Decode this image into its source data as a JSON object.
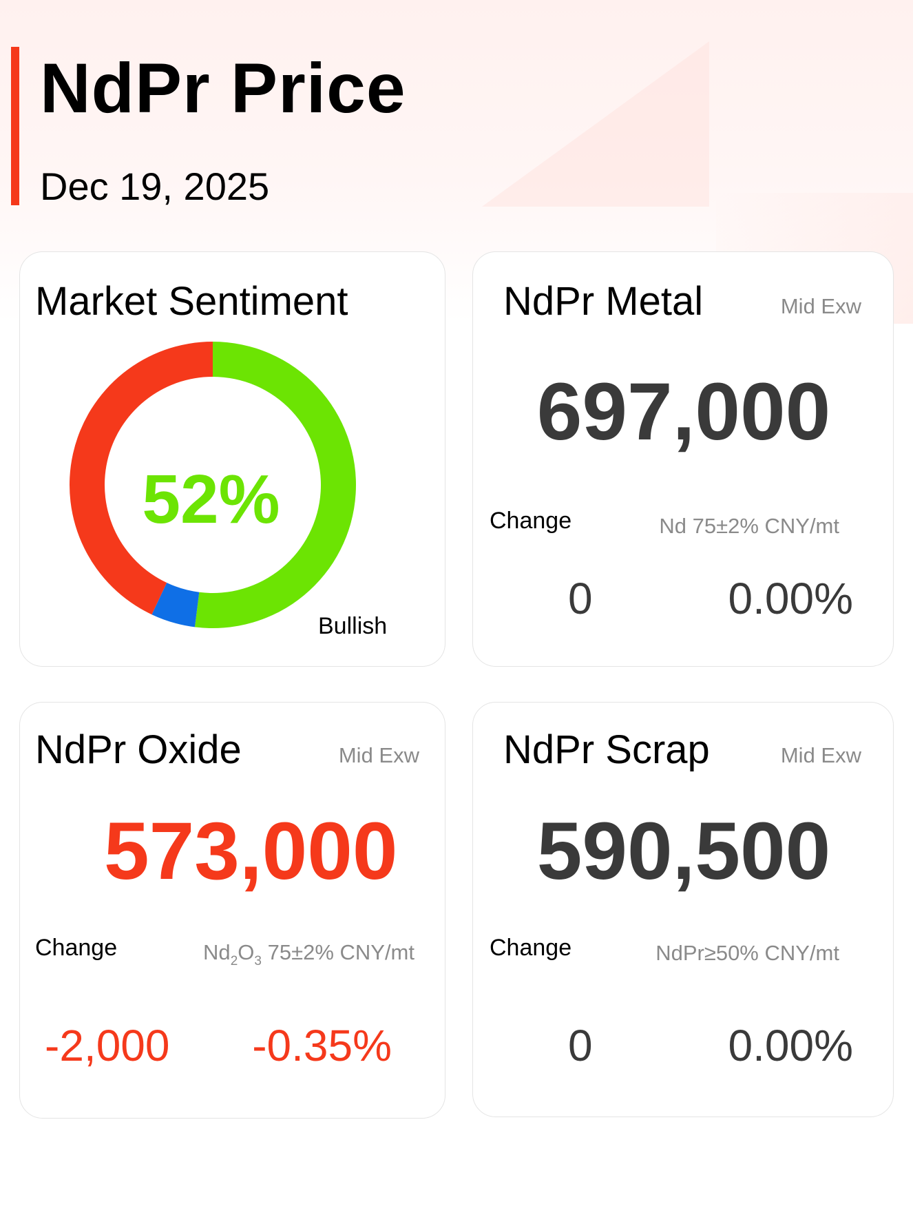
{
  "header": {
    "title": "NdPr Price",
    "date": "Dec 19, 2025"
  },
  "sentiment": {
    "title": "Market Sentiment",
    "percent_label": "52%",
    "label": "Bullish",
    "segments": [
      {
        "name": "bullish",
        "value": 52,
        "color": "#6ce403"
      },
      {
        "name": "neutral",
        "value": 5,
        "color": "#0f6fe6"
      },
      {
        "name": "bearish",
        "value": 43,
        "color": "#f5391b"
      }
    ]
  },
  "metal": {
    "title": "NdPr Metal",
    "basis": "Mid  Exw",
    "price": "697,000",
    "change_label": "Change",
    "spec": "Nd 75±2% CNY/mt",
    "change_abs": "0",
    "change_pct": "0.00%"
  },
  "oxide": {
    "title": "NdPr Oxide",
    "basis": "Mid  Exw",
    "price": "573,000",
    "change_label": "Change",
    "spec_a": "Nd",
    "spec_sub1": "2",
    "spec_b": "O",
    "spec_sub2": "3",
    "spec_c": " 75±2% CNY/mt",
    "change_abs": "-2,000",
    "change_pct": "-0.35%"
  },
  "scrap": {
    "title": "NdPr Scrap",
    "basis": "Mid  Exw",
    "price": "590,500",
    "change_label": "Change",
    "spec": "NdPr≥50% CNY/mt",
    "change_abs": "0",
    "change_pct": "0.00%"
  },
  "colors": {
    "accent": "#f5391b",
    "bullish": "#6ce403",
    "neutral": "#0f6fe6",
    "price_text": "#3a3a3a",
    "muted": "#8a8a8a"
  }
}
